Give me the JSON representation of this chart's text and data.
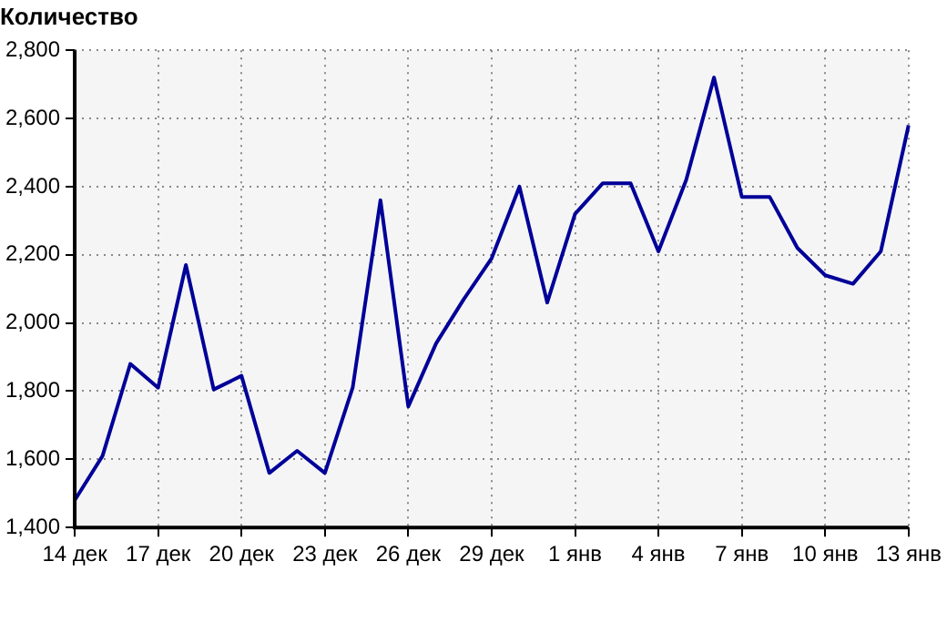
{
  "chart_data": {
    "type": "line",
    "title": "Количество",
    "categories": [
      "14 дек",
      null,
      null,
      "17 дек",
      null,
      null,
      "20 дек",
      null,
      null,
      "23 дек",
      null,
      null,
      "26 дек",
      null,
      null,
      "29 дек",
      null,
      null,
      "1 янв",
      null,
      null,
      "4 янв",
      null,
      null,
      "7 янв",
      null,
      null,
      "10 янв",
      null,
      null,
      "13 янв"
    ],
    "series": [
      {
        "color": "#000099",
        "values": [
          1480,
          1610,
          1880,
          1810,
          2170,
          1805,
          1845,
          1560,
          1625,
          1560,
          1810,
          2360,
          1755,
          1940,
          2070,
          2190,
          2400,
          2060,
          2320,
          2410,
          2410,
          2210,
          2420,
          2720,
          2370,
          2370,
          2220,
          2140,
          2115,
          2210,
          2580
        ]
      }
    ],
    "ylim": [
      1400,
      2800
    ],
    "yticks": [
      {
        "value": 1400,
        "label": "1,400"
      },
      {
        "value": 1600,
        "label": "1,600"
      },
      {
        "value": 1800,
        "label": "1,800"
      },
      {
        "value": 2000,
        "label": "2,000"
      },
      {
        "value": 2200,
        "label": "2,200"
      },
      {
        "value": 2400,
        "label": "2,400"
      },
      {
        "value": 2600,
        "label": "2,600"
      },
      {
        "value": 2800,
        "label": "2,800"
      }
    ],
    "grid": true,
    "legend": false,
    "marker": "none",
    "line_style": "solid"
  }
}
